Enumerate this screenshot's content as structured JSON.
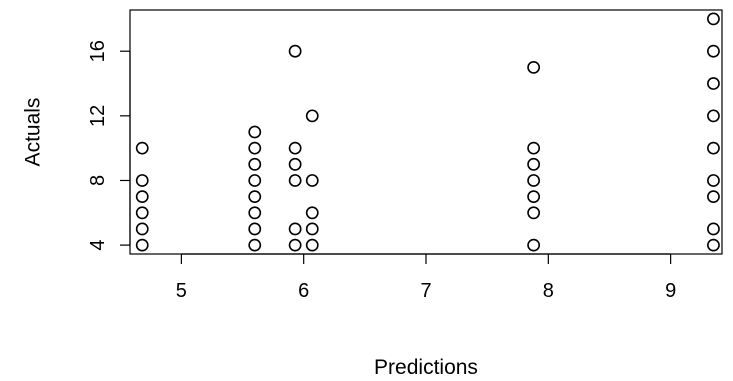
{
  "chart_data": {
    "type": "scatter",
    "xlabel": "Predictions",
    "ylabel": "Actuals",
    "xlim": [
      4.58,
      9.42
    ],
    "ylim": [
      3.45,
      18.55
    ],
    "x_ticks": [
      5,
      6,
      7,
      8,
      9
    ],
    "y_ticks": [
      4,
      8,
      12,
      16
    ],
    "grid": false,
    "marker": "open-circle",
    "colors": {
      "point": "#000000",
      "axis": "#000000",
      "background": "#ffffff"
    },
    "points": [
      {
        "x": 4.68,
        "y": 4
      },
      {
        "x": 4.68,
        "y": 5
      },
      {
        "x": 4.68,
        "y": 6
      },
      {
        "x": 4.68,
        "y": 7
      },
      {
        "x": 4.68,
        "y": 8
      },
      {
        "x": 4.68,
        "y": 10
      },
      {
        "x": 5.6,
        "y": 4
      },
      {
        "x": 5.6,
        "y": 5
      },
      {
        "x": 5.6,
        "y": 6
      },
      {
        "x": 5.6,
        "y": 7
      },
      {
        "x": 5.6,
        "y": 8
      },
      {
        "x": 5.6,
        "y": 9
      },
      {
        "x": 5.6,
        "y": 10
      },
      {
        "x": 5.6,
        "y": 11
      },
      {
        "x": 5.93,
        "y": 4
      },
      {
        "x": 5.93,
        "y": 5
      },
      {
        "x": 5.93,
        "y": 8
      },
      {
        "x": 5.93,
        "y": 9
      },
      {
        "x": 5.93,
        "y": 10
      },
      {
        "x": 5.93,
        "y": 16
      },
      {
        "x": 6.07,
        "y": 4
      },
      {
        "x": 6.07,
        "y": 5
      },
      {
        "x": 6.07,
        "y": 6
      },
      {
        "x": 6.07,
        "y": 8
      },
      {
        "x": 6.07,
        "y": 12
      },
      {
        "x": 7.88,
        "y": 4
      },
      {
        "x": 7.88,
        "y": 6
      },
      {
        "x": 7.88,
        "y": 7
      },
      {
        "x": 7.88,
        "y": 8
      },
      {
        "x": 7.88,
        "y": 9
      },
      {
        "x": 7.88,
        "y": 10
      },
      {
        "x": 7.88,
        "y": 15
      },
      {
        "x": 9.35,
        "y": 4
      },
      {
        "x": 9.35,
        "y": 5
      },
      {
        "x": 9.35,
        "y": 7
      },
      {
        "x": 9.35,
        "y": 8
      },
      {
        "x": 9.35,
        "y": 10
      },
      {
        "x": 9.35,
        "y": 12
      },
      {
        "x": 9.35,
        "y": 14
      },
      {
        "x": 9.35,
        "y": 16
      },
      {
        "x": 9.35,
        "y": 18
      }
    ]
  }
}
